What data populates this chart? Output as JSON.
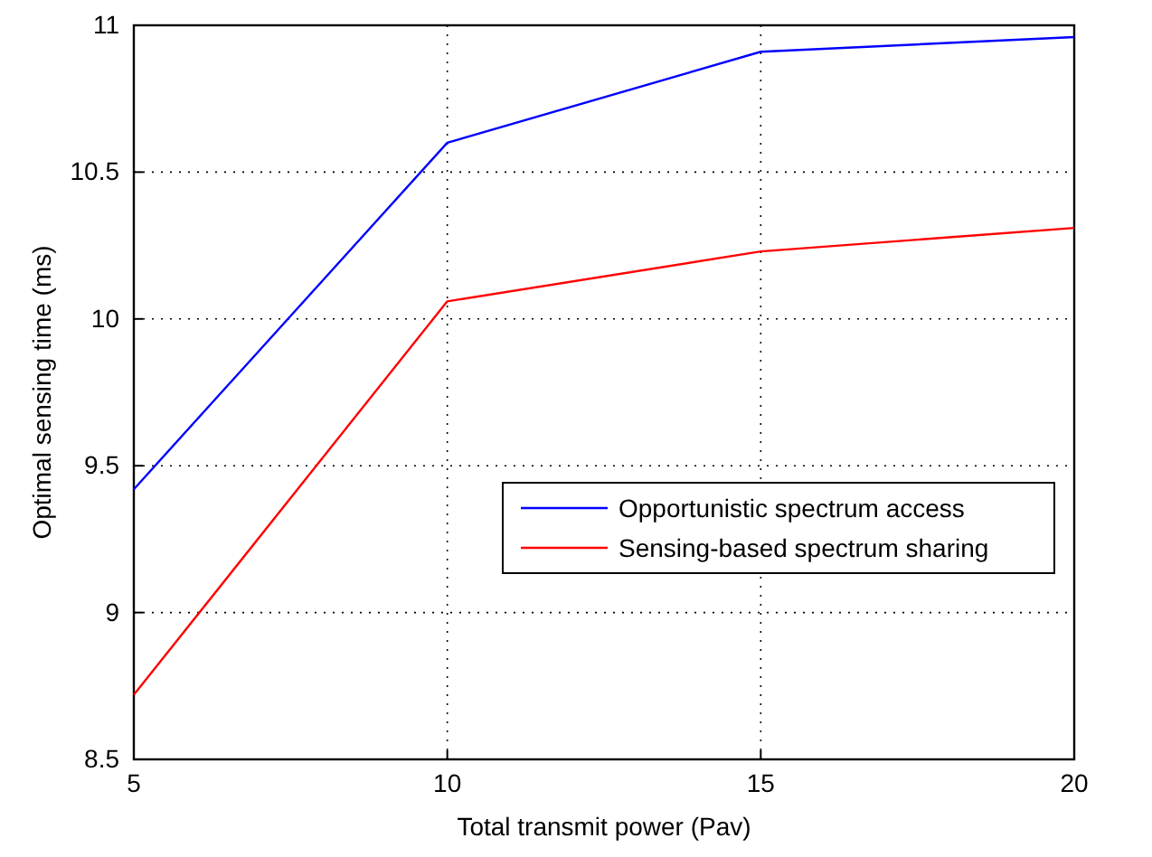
{
  "chart_data": {
    "type": "line",
    "xlabel": "Total transmit power (Pav)",
    "ylabel": "Optimal sensing time (ms)",
    "x": [
      5,
      10,
      15,
      20
    ],
    "series": [
      {
        "name": "Opportunistic spectrum access",
        "color": "#0000ff",
        "values": [
          9.42,
          10.6,
          10.91,
          10.96
        ]
      },
      {
        "name": "Sensing-based spectrum sharing",
        "color": "#ff0000",
        "values": [
          8.72,
          10.06,
          10.23,
          10.31
        ]
      }
    ],
    "xlim": [
      5,
      20
    ],
    "xticks": [
      5,
      10,
      15,
      20
    ],
    "ylim": [
      8.5,
      11
    ],
    "yticks": [
      8.5,
      9,
      9.5,
      10,
      10.5,
      11
    ],
    "grid": true,
    "legend": "right",
    "line_style": "solid"
  }
}
